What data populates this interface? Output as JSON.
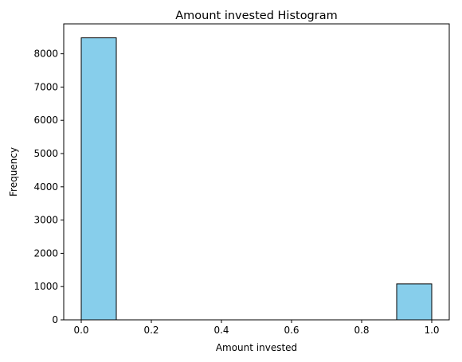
{
  "chart_data": {
    "type": "bar",
    "title": "Amount invested Histogram",
    "xlabel": "Amount invested",
    "ylabel": "Frequency",
    "xlim": [
      -0.05,
      1.05
    ],
    "ylim": [
      0,
      8900
    ],
    "xticks": [
      0.0,
      0.2,
      0.4,
      0.6,
      0.8,
      1.0
    ],
    "xtick_labels": [
      "0.0",
      "0.2",
      "0.4",
      "0.6",
      "0.8",
      "1.0"
    ],
    "yticks": [
      0,
      1000,
      2000,
      3000,
      4000,
      5000,
      6000,
      7000,
      8000
    ],
    "ytick_labels": [
      "0",
      "1000",
      "2000",
      "3000",
      "4000",
      "5000",
      "6000",
      "7000",
      "8000"
    ],
    "bins": [
      {
        "x0": 0.0,
        "x1": 0.1,
        "count": 8480
      },
      {
        "x0": 0.1,
        "x1": 0.2,
        "count": 0
      },
      {
        "x0": 0.2,
        "x1": 0.3,
        "count": 0
      },
      {
        "x0": 0.3,
        "x1": 0.4,
        "count": 0
      },
      {
        "x0": 0.4,
        "x1": 0.5,
        "count": 0
      },
      {
        "x0": 0.5,
        "x1": 0.6,
        "count": 0
      },
      {
        "x0": 0.6,
        "x1": 0.7,
        "count": 0
      },
      {
        "x0": 0.7,
        "x1": 0.8,
        "count": 0
      },
      {
        "x0": 0.8,
        "x1": 0.9,
        "count": 0
      },
      {
        "x0": 0.9,
        "x1": 1.0,
        "count": 1080
      }
    ],
    "bar_color": "#87CEEB",
    "edge_color": "#000000",
    "grid": false,
    "legend": false
  }
}
